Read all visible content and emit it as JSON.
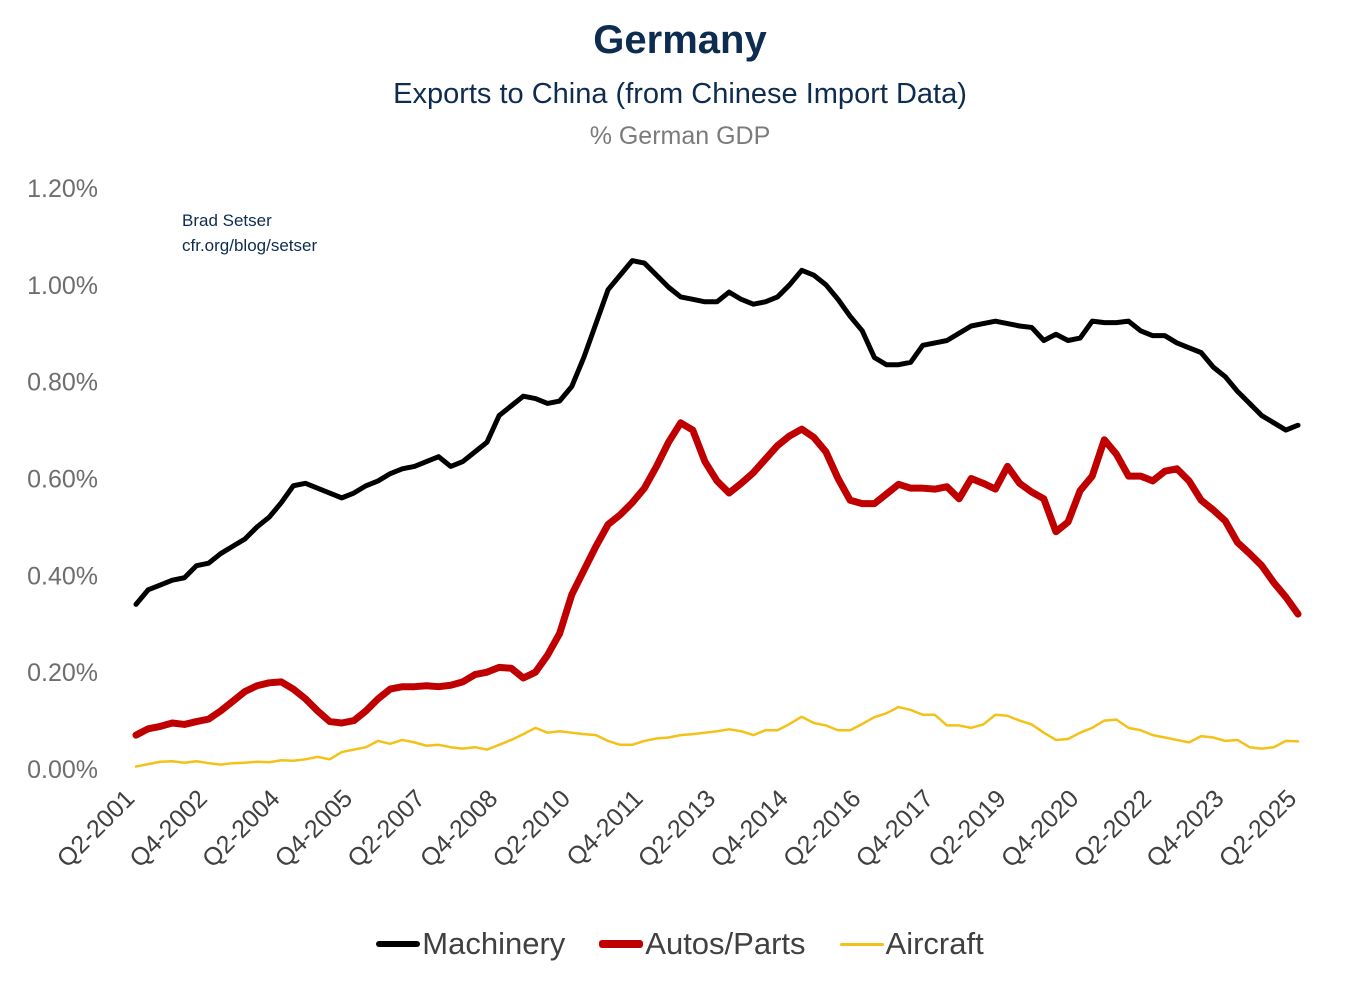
{
  "chart_data": {
    "type": "line",
    "title": "Germany",
    "subtitle": "Exports to China (from Chinese Import Data)",
    "unit_label": "% German GDP",
    "credit": [
      "Brad Setser",
      "cfr.org/blog/setser"
    ],
    "ylim": [
      0,
      1.2
    ],
    "y_ticks": [
      0,
      0.2,
      0.4,
      0.6,
      0.8,
      1.0,
      1.2
    ],
    "y_tick_labels": [
      "0.00%",
      "0.20%",
      "0.40%",
      "0.60%",
      "0.80%",
      "1.00%",
      "1.20%"
    ],
    "x_start": "Q2-2001",
    "x_tick_labels": [
      "Q2-2001",
      "Q4-2002",
      "Q2-2004",
      "Q4-2005",
      "Q2-2007",
      "Q4-2008",
      "Q2-2010",
      "Q4-2011",
      "Q2-2013",
      "Q4-2014",
      "Q2-2016",
      "Q4-2017",
      "Q2-2019",
      "Q4-2020",
      "Q2-2022",
      "Q4-2023",
      "Q2-2025"
    ],
    "grid": false,
    "legend_position": "bottom",
    "colors": {
      "Machinery": "#000000",
      "Autos/Parts": "#c00000",
      "Aircraft": "#f4c118"
    },
    "series": [
      {
        "name": "Machinery",
        "values": [
          0.34,
          0.37,
          0.38,
          0.39,
          0.395,
          0.42,
          0.425,
          0.445,
          0.46,
          0.475,
          0.5,
          0.52,
          0.55,
          0.585,
          0.59,
          0.58,
          0.57,
          0.56,
          0.57,
          0.585,
          0.595,
          0.61,
          0.62,
          0.625,
          0.635,
          0.645,
          0.625,
          0.635,
          0.655,
          0.675,
          0.73,
          0.75,
          0.77,
          0.765,
          0.755,
          0.76,
          0.79,
          0.85,
          0.92,
          0.99,
          1.02,
          1.05,
          1.045,
          1.02,
          0.995,
          0.975,
          0.97,
          0.965,
          0.965,
          0.985,
          0.97,
          0.96,
          0.965,
          0.975,
          1.0,
          1.03,
          1.02,
          1.0,
          0.97,
          0.935,
          0.905,
          0.85,
          0.835,
          0.835,
          0.84,
          0.875,
          0.88,
          0.885,
          0.9,
          0.915,
          0.92,
          0.925,
          0.92,
          0.915,
          0.912,
          0.885,
          0.898,
          0.885,
          0.89,
          0.925,
          0.922,
          0.922,
          0.925,
          0.905,
          0.895,
          0.895,
          0.88,
          0.87,
          0.86,
          0.83,
          0.81,
          0.78,
          0.755,
          0.73,
          0.715,
          0.7,
          0.71
        ]
      },
      {
        "name": "Autos/Parts",
        "values": [
          0.07,
          0.083,
          0.088,
          0.095,
          0.092,
          0.098,
          0.103,
          0.12,
          0.14,
          0.16,
          0.172,
          0.178,
          0.18,
          0.165,
          0.145,
          0.12,
          0.098,
          0.095,
          0.1,
          0.12,
          0.145,
          0.165,
          0.17,
          0.17,
          0.172,
          0.17,
          0.173,
          0.18,
          0.195,
          0.2,
          0.21,
          0.208,
          0.188,
          0.2,
          0.235,
          0.28,
          0.36,
          0.41,
          0.46,
          0.505,
          0.525,
          0.55,
          0.58,
          0.625,
          0.675,
          0.715,
          0.7,
          0.635,
          0.595,
          0.57,
          0.59,
          0.612,
          0.64,
          0.668,
          0.688,
          0.702,
          0.685,
          0.655,
          0.6,
          0.555,
          0.548,
          0.548,
          0.568,
          0.588,
          0.58,
          0.58,
          0.578,
          0.583,
          0.558,
          0.6,
          0.59,
          0.578,
          0.625,
          0.59,
          0.572,
          0.558,
          0.49,
          0.51,
          0.575,
          0.605,
          0.68,
          0.65,
          0.605,
          0.605,
          0.595,
          0.615,
          0.62,
          0.595,
          0.555,
          0.535,
          0.512,
          0.468,
          0.445,
          0.42,
          0.385,
          0.355,
          0.32
        ]
      },
      {
        "name": "Aircraft",
        "values": [
          0.005,
          0.01,
          0.015,
          0.016,
          0.013,
          0.016,
          0.012,
          0.009,
          0.012,
          0.013,
          0.015,
          0.014,
          0.018,
          0.017,
          0.02,
          0.025,
          0.02,
          0.035,
          0.04,
          0.045,
          0.058,
          0.052,
          0.06,
          0.055,
          0.048,
          0.05,
          0.045,
          0.042,
          0.045,
          0.04,
          0.05,
          0.06,
          0.072,
          0.085,
          0.075,
          0.078,
          0.075,
          0.072,
          0.07,
          0.058,
          0.05,
          0.05,
          0.058,
          0.063,
          0.065,
          0.07,
          0.072,
          0.075,
          0.078,
          0.082,
          0.078,
          0.07,
          0.08,
          0.08,
          0.093,
          0.108,
          0.095,
          0.09,
          0.08,
          0.08,
          0.093,
          0.107,
          0.115,
          0.128,
          0.122,
          0.112,
          0.112,
          0.09,
          0.09,
          0.085,
          0.092,
          0.112,
          0.11,
          0.1,
          0.092,
          0.075,
          0.06,
          0.062,
          0.075,
          0.085,
          0.1,
          0.102,
          0.085,
          0.08,
          0.07,
          0.065,
          0.06,
          0.055,
          0.068,
          0.065,
          0.058,
          0.06,
          0.045,
          0.042,
          0.045,
          0.058,
          0.057
        ]
      }
    ]
  }
}
